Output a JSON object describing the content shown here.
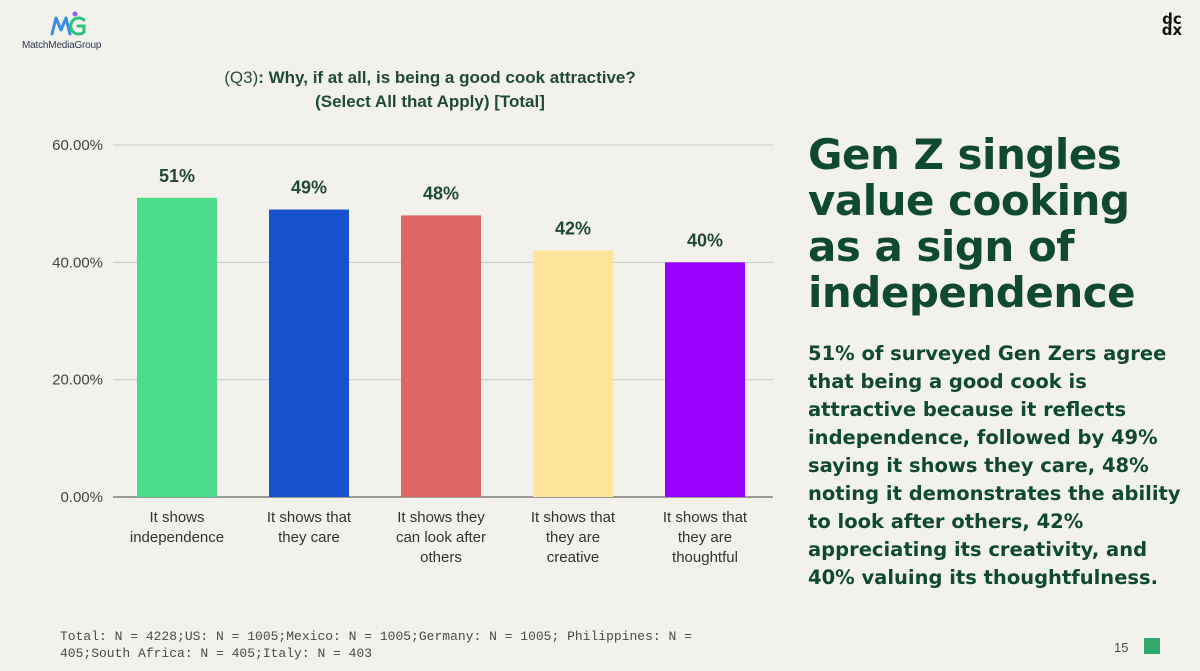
{
  "brand": {
    "left_logo_text": "MatchMediaGroup",
    "right_logo_text": [
      "dc",
      "dx"
    ]
  },
  "chart_title": {
    "prefix": "(Q3)",
    "line1": ": Why, if at all, is being a good cook attractive?",
    "line2": "(Select All that Apply) [Total]"
  },
  "chart_data": {
    "type": "bar",
    "categories": [
      [
        "It shows",
        "independence"
      ],
      [
        "It shows that",
        "they care"
      ],
      [
        "It shows they",
        "can look after",
        "others"
      ],
      [
        "It shows that",
        "they are",
        "creative"
      ],
      [
        "It shows that",
        "they are",
        "thoughtful"
      ]
    ],
    "values": [
      51,
      49,
      48,
      42,
      40
    ],
    "data_labels": [
      "51%",
      "49%",
      "48%",
      "42%",
      "40%"
    ],
    "colors": [
      "#4ddc8a",
      "#1552cc",
      "#e06666",
      "#ffe599",
      "#9900ff"
    ],
    "ylim": [
      0,
      60
    ],
    "yticks": [
      0,
      20,
      40,
      60
    ],
    "ytick_labels": [
      "0.00%",
      "20.00%",
      "40.00%",
      "60.00%"
    ],
    "grid": true,
    "legend": "none"
  },
  "headline": "Gen Z singles value cooking as a sign of independence",
  "body": "51% of surveyed Gen Zers agree that being a good cook is attractive because it reflects independence, followed by 49% saying it shows they care, 48% noting it demonstrates the ability to look after others, 42% appreciating its creativity, and 40% valuing its thoughtfulness.",
  "footnote": "Total: N = 4228;US: N = 1005;Mexico: N = 1005;Germany: N = 1005; Philippines: N = 405;South Africa: N = 405;Italy: N = 403",
  "page_number": "15",
  "colors": {
    "accent_green": "#0f4a2e",
    "page_square": "#2faa6a"
  }
}
